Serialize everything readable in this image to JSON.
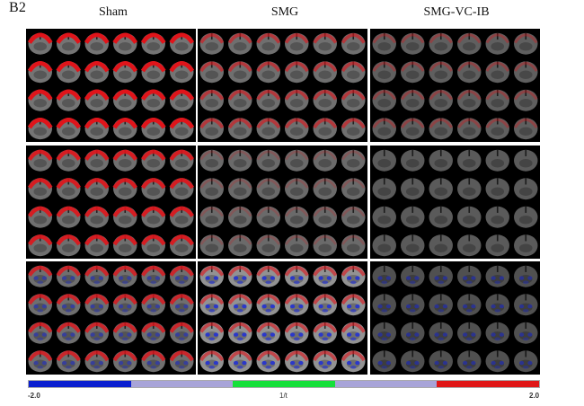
{
  "panel_label": "B2",
  "columns": [
    {
      "label": "Sham",
      "key": "sham"
    },
    {
      "label": "SMG",
      "key": "smg"
    },
    {
      "label": "SMG-VC-IB",
      "key": "smgvcib"
    }
  ],
  "colorbar": {
    "min_label": "-2.0",
    "mid_label": "1/t",
    "max_label": "2.0",
    "colors": [
      "#0a1fd0",
      "#a8a4d8",
      "#16e03a",
      "#a8a4d8",
      "#e01616"
    ]
  },
  "cells": [
    {
      "row": 0,
      "col": 0,
      "red": 0.9,
      "blue": 0.0,
      "bright": 0.55
    },
    {
      "row": 0,
      "col": 1,
      "red": 0.5,
      "blue": 0.0,
      "bright": 0.5
    },
    {
      "row": 0,
      "col": 2,
      "red": 0.25,
      "blue": 0.0,
      "bright": 0.35
    },
    {
      "row": 1,
      "col": 0,
      "red": 0.8,
      "blue": 0.0,
      "bright": 0.5
    },
    {
      "row": 1,
      "col": 1,
      "red": 0.1,
      "blue": 0.0,
      "bright": 0.45
    },
    {
      "row": 1,
      "col": 2,
      "red": 0.0,
      "blue": 0.0,
      "bright": 0.3
    },
    {
      "row": 2,
      "col": 0,
      "red": 0.7,
      "blue": 0.5,
      "bright": 0.5
    },
    {
      "row": 2,
      "col": 1,
      "red": 0.5,
      "blue": 0.8,
      "bright": 0.85
    },
    {
      "row": 2,
      "col": 2,
      "red": 0.0,
      "blue": 0.5,
      "bright": 0.2
    }
  ]
}
